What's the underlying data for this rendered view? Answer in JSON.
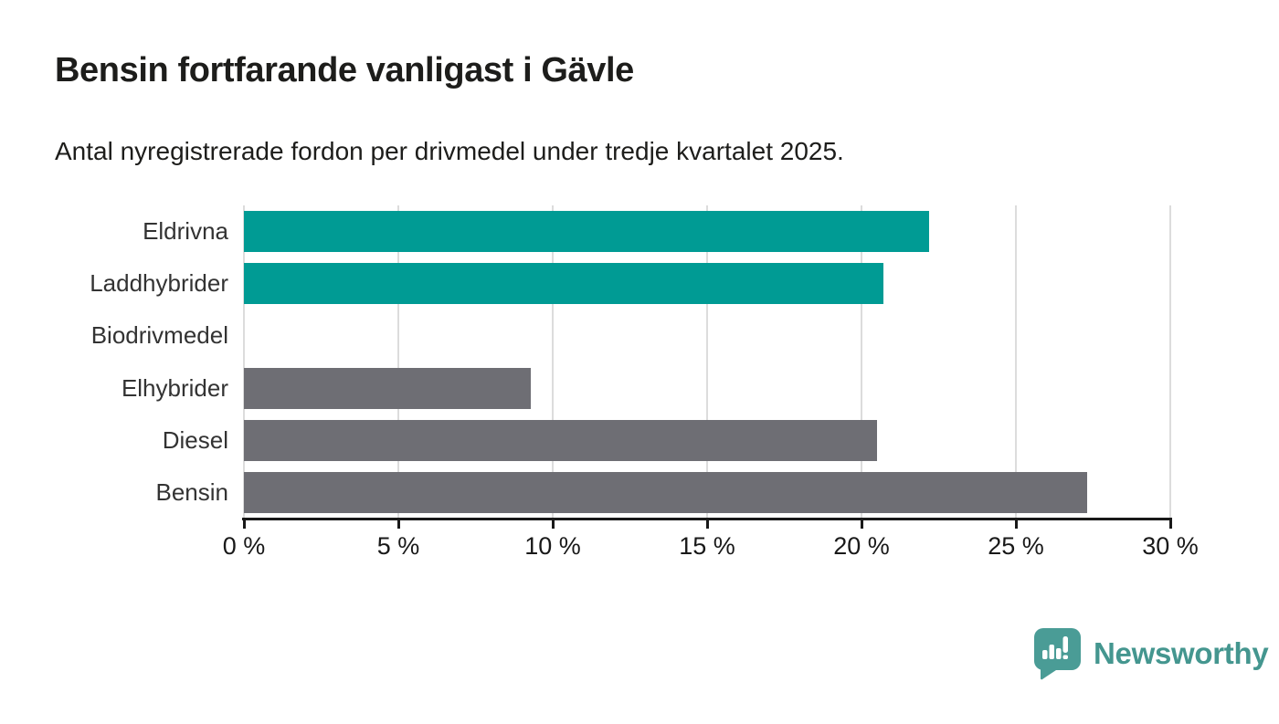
{
  "header": {
    "title": "Bensin fortfarande vanligast i Gävle",
    "subtitle": "Antal nyregistrerade fordon per drivmedel under tredje kvartalet 2025."
  },
  "chart_data": {
    "type": "bar",
    "orientation": "horizontal",
    "title": "Bensin fortfarande vanligast i Gävle",
    "subtitle": "Antal nyregistrerade fordon per drivmedel under tredje kvartalet 2025.",
    "categories": [
      "Eldrivna",
      "Laddhybrider",
      "Biodrivmedel",
      "Elhybrider",
      "Diesel",
      "Bensin"
    ],
    "values": [
      22.2,
      20.7,
      0,
      9.3,
      20.5,
      27.3
    ],
    "unit": "%",
    "bar_colors": [
      "#009b94",
      "#009b94",
      "#6e6e74",
      "#6e6e74",
      "#6e6e74",
      "#6e6e74"
    ],
    "highlight_color": "#009b94",
    "base_color": "#6e6e74",
    "xlim": [
      0,
      30
    ],
    "x_tick_values": [
      0,
      5,
      10,
      15,
      20,
      25,
      30
    ],
    "x_tick_labels": [
      "0 %",
      "5 %",
      "10 %",
      "15 %",
      "20 %",
      "25 %",
      "30 %"
    ],
    "grid": true,
    "legend": "none"
  },
  "footer": {
    "brand": "Newsworthy",
    "logo_icon": "speech-bubble-bar-chart-icon",
    "brand_color": "#44968f",
    "logo_fill": "#4a9c96"
  },
  "colors": {
    "background": "#ffffff",
    "title_text": "#1d1d1b",
    "label_text": "#333333",
    "axis": "#191919",
    "gridline": "#dcdcdc"
  }
}
